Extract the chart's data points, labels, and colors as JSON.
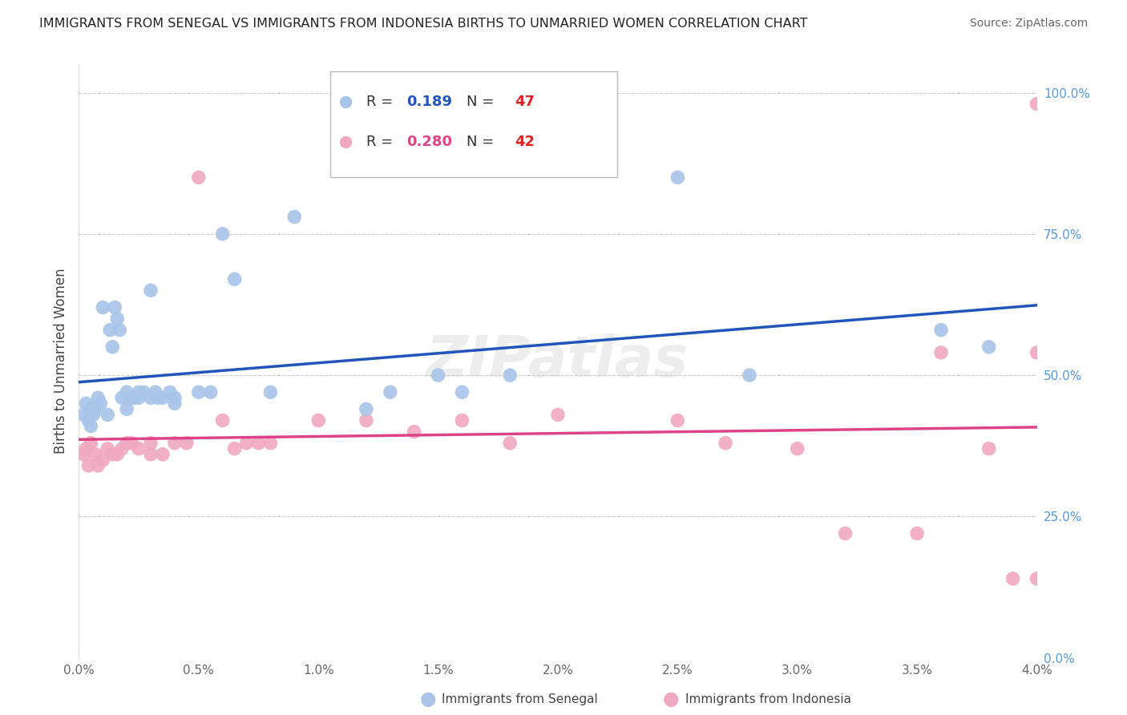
{
  "title": "IMMIGRANTS FROM SENEGAL VS IMMIGRANTS FROM INDONESIA BIRTHS TO UNMARRIED WOMEN CORRELATION CHART",
  "source": "Source: ZipAtlas.com",
  "ylabel": "Births to Unmarried Women",
  "y_ticks": [
    0.0,
    0.25,
    0.5,
    0.75,
    1.0
  ],
  "x_lim": [
    0.0,
    0.04
  ],
  "y_lim": [
    0.0,
    1.05
  ],
  "color_senegal": "#a8c4e8",
  "color_indonesia": "#f0a8c0",
  "color_line_senegal": "#2255bb",
  "color_line_indonesia": "#dd4488",
  "watermark": "ZIPatlas",
  "senegal_x": [
    0.0002,
    0.0003,
    0.0004,
    0.0005,
    0.0005,
    0.0006,
    0.0007,
    0.0008,
    0.0009,
    0.001,
    0.0012,
    0.0013,
    0.0014,
    0.0015,
    0.0016,
    0.0017,
    0.0018,
    0.002,
    0.002,
    0.0021,
    0.0023,
    0.0025,
    0.0025,
    0.0027,
    0.003,
    0.003,
    0.0032,
    0.0033,
    0.0035,
    0.0038,
    0.004,
    0.004,
    0.005,
    0.0055,
    0.006,
    0.0065,
    0.008,
    0.009,
    0.012,
    0.013,
    0.015,
    0.016,
    0.018,
    0.025,
    0.028,
    0.036,
    0.038
  ],
  "senegal_y": [
    0.43,
    0.45,
    0.42,
    0.41,
    0.44,
    0.43,
    0.44,
    0.46,
    0.45,
    0.62,
    0.43,
    0.58,
    0.55,
    0.62,
    0.6,
    0.58,
    0.46,
    0.44,
    0.47,
    0.46,
    0.46,
    0.46,
    0.47,
    0.47,
    0.65,
    0.46,
    0.47,
    0.46,
    0.46,
    0.47,
    0.46,
    0.45,
    0.47,
    0.47,
    0.75,
    0.67,
    0.47,
    0.78,
    0.44,
    0.47,
    0.5,
    0.47,
    0.5,
    0.85,
    0.5,
    0.58,
    0.55
  ],
  "indonesia_x": [
    0.0002,
    0.0003,
    0.0004,
    0.0005,
    0.0007,
    0.0008,
    0.001,
    0.0012,
    0.0014,
    0.0016,
    0.0018,
    0.002,
    0.0022,
    0.0025,
    0.003,
    0.003,
    0.0035,
    0.004,
    0.0045,
    0.005,
    0.006,
    0.0065,
    0.007,
    0.0075,
    0.008,
    0.01,
    0.012,
    0.014,
    0.016,
    0.018,
    0.02,
    0.025,
    0.027,
    0.03,
    0.032,
    0.035,
    0.036,
    0.038,
    0.039,
    0.04,
    0.04,
    0.04
  ],
  "indonesia_y": [
    0.36,
    0.37,
    0.34,
    0.38,
    0.36,
    0.34,
    0.35,
    0.37,
    0.36,
    0.36,
    0.37,
    0.38,
    0.38,
    0.37,
    0.36,
    0.38,
    0.36,
    0.38,
    0.38,
    0.85,
    0.42,
    0.37,
    0.38,
    0.38,
    0.38,
    0.42,
    0.42,
    0.4,
    0.42,
    0.38,
    0.43,
    0.42,
    0.38,
    0.37,
    0.22,
    0.22,
    0.54,
    0.37,
    0.14,
    0.98,
    0.54,
    0.14
  ]
}
